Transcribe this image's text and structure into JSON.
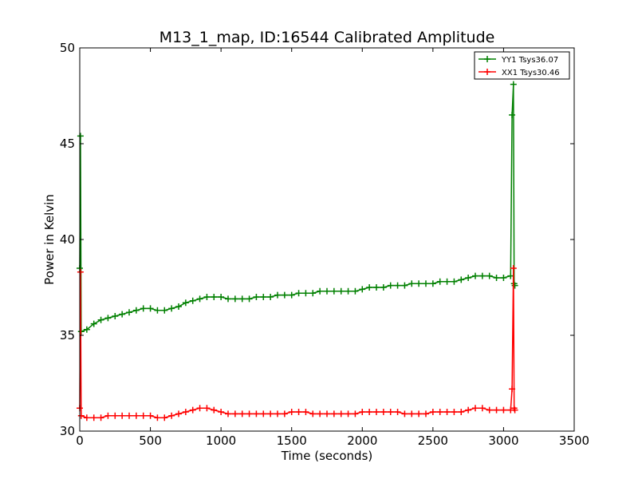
{
  "chart_data": {
    "type": "line",
    "title": "M13_1_map, ID:16544 Calibrated Amplitude",
    "xlabel": "Time (seconds)",
    "ylabel": "Power in Kelvin",
    "xlim": [
      0,
      3500
    ],
    "ylim": [
      30,
      50
    ],
    "xticks": [
      0,
      500,
      1000,
      1500,
      2000,
      2500,
      3000,
      3500
    ],
    "yticks": [
      30,
      35,
      40,
      45,
      50
    ],
    "grid": false,
    "legend": "top-right",
    "series": [
      {
        "name": "YY1 Tsys36.07",
        "color": "#008000",
        "marker": "+",
        "x": [
          0,
          5,
          10,
          50,
          100,
          150,
          200,
          250,
          300,
          350,
          400,
          450,
          500,
          550,
          600,
          650,
          700,
          750,
          800,
          850,
          900,
          950,
          1000,
          1050,
          1100,
          1150,
          1200,
          1250,
          1300,
          1350,
          1400,
          1450,
          1500,
          1550,
          1600,
          1650,
          1700,
          1750,
          1800,
          1850,
          1900,
          1950,
          2000,
          2050,
          2100,
          2150,
          2200,
          2250,
          2300,
          2350,
          2400,
          2450,
          2500,
          2550,
          2600,
          2650,
          2700,
          2750,
          2800,
          2850,
          2900,
          2950,
          3000,
          3050,
          3060,
          3070,
          3075,
          3080
        ],
        "y": [
          38.5,
          45.4,
          35.2,
          35.3,
          35.6,
          35.8,
          35.9,
          36.0,
          36.1,
          36.2,
          36.3,
          36.4,
          36.4,
          36.3,
          36.3,
          36.4,
          36.5,
          36.7,
          36.8,
          36.9,
          37.0,
          37.0,
          37.0,
          36.9,
          36.9,
          36.9,
          36.9,
          37.0,
          37.0,
          37.0,
          37.1,
          37.1,
          37.1,
          37.2,
          37.2,
          37.2,
          37.3,
          37.3,
          37.3,
          37.3,
          37.3,
          37.3,
          37.4,
          37.5,
          37.5,
          37.5,
          37.6,
          37.6,
          37.6,
          37.7,
          37.7,
          37.7,
          37.7,
          37.8,
          37.8,
          37.8,
          37.9,
          38.0,
          38.1,
          38.1,
          38.1,
          38.0,
          38.0,
          38.1,
          46.5,
          48.1,
          37.7,
          37.6
        ]
      },
      {
        "name": "XX1 Tsys30.46",
        "color": "#ff0000",
        "marker": "+",
        "x": [
          0,
          5,
          10,
          50,
          100,
          150,
          200,
          250,
          300,
          350,
          400,
          450,
          500,
          550,
          600,
          650,
          700,
          750,
          800,
          850,
          900,
          950,
          1000,
          1050,
          1100,
          1150,
          1200,
          1250,
          1300,
          1350,
          1400,
          1450,
          1500,
          1550,
          1600,
          1650,
          1700,
          1750,
          1800,
          1850,
          1900,
          1950,
          2000,
          2050,
          2100,
          2150,
          2200,
          2250,
          2300,
          2350,
          2400,
          2450,
          2500,
          2550,
          2600,
          2650,
          2700,
          2750,
          2800,
          2850,
          2900,
          2950,
          3000,
          3050,
          3060,
          3070,
          3075,
          3080
        ],
        "y": [
          31.2,
          38.3,
          30.8,
          30.7,
          30.7,
          30.7,
          30.8,
          30.8,
          30.8,
          30.8,
          30.8,
          30.8,
          30.8,
          30.7,
          30.7,
          30.8,
          30.9,
          31.0,
          31.1,
          31.2,
          31.2,
          31.1,
          31.0,
          30.9,
          30.9,
          30.9,
          30.9,
          30.9,
          30.9,
          30.9,
          30.9,
          30.9,
          31.0,
          31.0,
          31.0,
          30.9,
          30.9,
          30.9,
          30.9,
          30.9,
          30.9,
          30.9,
          31.0,
          31.0,
          31.0,
          31.0,
          31.0,
          31.0,
          30.9,
          30.9,
          30.9,
          30.9,
          31.0,
          31.0,
          31.0,
          31.0,
          31.0,
          31.1,
          31.2,
          31.2,
          31.1,
          31.1,
          31.1,
          31.1,
          32.2,
          38.5,
          31.2,
          31.1
        ]
      }
    ]
  }
}
